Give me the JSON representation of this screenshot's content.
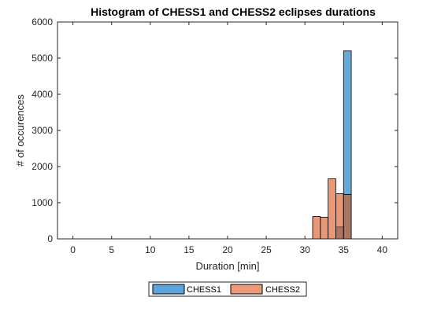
{
  "chart_data": {
    "type": "bar",
    "title": "Histogram of CHESS1 and CHESS2 eclipses durations",
    "xlabel": "Duration [min]",
    "ylabel": "# of occurences",
    "xlim": [
      -2,
      42
    ],
    "ylim": [
      0,
      6000
    ],
    "xticks": [
      0,
      5,
      10,
      15,
      20,
      25,
      30,
      35,
      40
    ],
    "yticks": [
      0,
      1000,
      2000,
      3000,
      4000,
      5000,
      6000
    ],
    "grid": false,
    "legend": "bottom-outside",
    "bin_width": 1,
    "series": [
      {
        "name": "CHESS1",
        "color": "#0072BD",
        "face_color": "#5DA5DA",
        "bins": [
          {
            "x0": 34,
            "x1": 35,
            "value": 330
          },
          {
            "x0": 35,
            "x1": 36,
            "value": 5200
          }
        ]
      },
      {
        "name": "CHESS2",
        "color": "#D95319",
        "face_color": "#EC9A79",
        "bins": [
          {
            "x0": 31,
            "x1": 32,
            "value": 620
          },
          {
            "x0": 32,
            "x1": 33,
            "value": 600
          },
          {
            "x0": 33,
            "x1": 34,
            "value": 1660
          },
          {
            "x0": 34,
            "x1": 35,
            "value": 1250
          },
          {
            "x0": 35,
            "x1": 36,
            "value": 1230
          }
        ]
      }
    ]
  }
}
